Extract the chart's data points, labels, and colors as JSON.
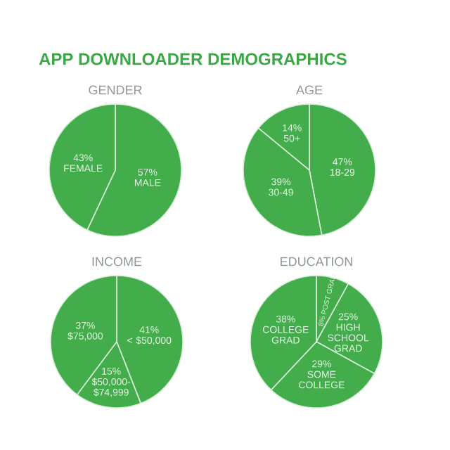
{
  "chart_data": [
    {
      "type": "pie",
      "title": "GENDER",
      "annotations": [
        "APP DOWNLOADER DEMOGRAPHICS"
      ],
      "categories": [
        "MALE",
        "FEMALE"
      ],
      "values": [
        57,
        43
      ],
      "value_labels": [
        "57%",
        "43%"
      ],
      "colors": [
        "#43ad4b",
        "#43ad4b"
      ]
    },
    {
      "type": "pie",
      "title": "AGE",
      "categories": [
        "18-29",
        "30-49",
        "50+"
      ],
      "values": [
        47,
        39,
        14
      ],
      "value_labels": [
        "47%",
        "39%",
        "14%"
      ],
      "colors": [
        "#43ad4b",
        "#43ad4b",
        "#43ad4b"
      ]
    },
    {
      "type": "pie",
      "title": "INCOME",
      "categories": [
        "< $50,000",
        "$50,000-$74,999",
        "$75,000"
      ],
      "values": [
        41,
        15,
        37
      ],
      "value_labels": [
        "41%",
        "15%",
        "37%"
      ],
      "colors": [
        "#43ad4b",
        "#43ad4b",
        "#43ad4b"
      ]
    },
    {
      "type": "pie",
      "title": "EDUCATION",
      "categories": [
        "POST GRAD",
        "HIGH SCHOOL GRAD",
        "SOME COLLEGE",
        "COLLEGE GRAD"
      ],
      "values": [
        8,
        25,
        29,
        38
      ],
      "value_labels": [
        "8%",
        "25%",
        "29%",
        "38%"
      ],
      "colors": [
        "#43ad4b",
        "#43ad4b",
        "#43ad4b",
        "#43ad4b"
      ]
    }
  ]
}
